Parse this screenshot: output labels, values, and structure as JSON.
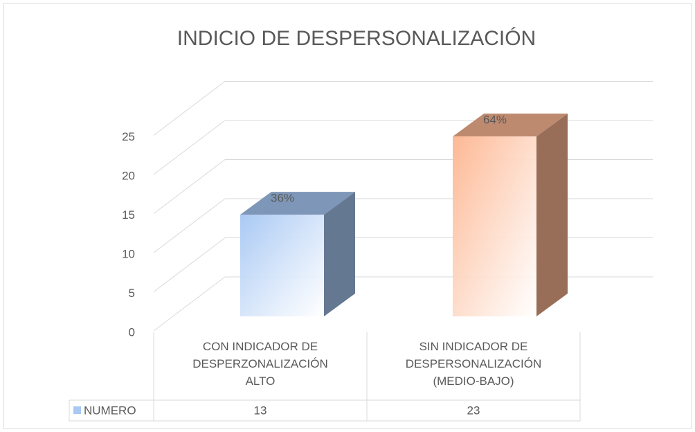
{
  "chart_data": {
    "type": "bar3d",
    "title": "INDICIO DE DESPERSONALIZACIÓN",
    "categories": [
      "CON INDICADOR DE\nDESPERZONALIZACIÓN\nALTO",
      "SIN INDICADOR DE\nDESPERSONALIZACIÓN\n(MEDIO-BAJO)"
    ],
    "series": [
      {
        "name": "NUMERO",
        "color": "#a9c9f4",
        "point_colors": [
          "#a9c9f4",
          "#fdb894"
        ],
        "values": [
          13,
          23
        ],
        "value_labels": [
          "36%",
          "64%"
        ]
      }
    ],
    "ylim": [
      0,
      25
    ],
    "yticks": [
      0,
      5,
      10,
      15,
      20,
      25
    ],
    "grid": true
  }
}
